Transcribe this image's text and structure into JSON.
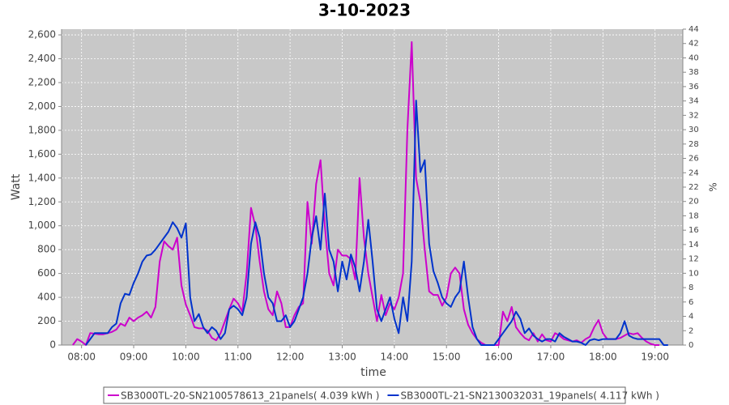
{
  "chart_data": {
    "type": "line",
    "title": "3-10-2023",
    "xlabel": "time",
    "ylabel": "Watt",
    "y2label": "%",
    "x": [
      "07:50",
      "07:55",
      "08:00",
      "08:05",
      "08:10",
      "08:15",
      "08:20",
      "08:25",
      "08:30",
      "08:35",
      "08:40",
      "08:45",
      "08:50",
      "08:55",
      "09:00",
      "09:05",
      "09:10",
      "09:15",
      "09:20",
      "09:25",
      "09:30",
      "09:35",
      "09:40",
      "09:45",
      "09:50",
      "09:55",
      "10:00",
      "10:05",
      "10:10",
      "10:15",
      "10:20",
      "10:25",
      "10:30",
      "10:35",
      "10:40",
      "10:45",
      "10:50",
      "10:55",
      "11:00",
      "11:05",
      "11:10",
      "11:15",
      "11:20",
      "11:25",
      "11:30",
      "11:35",
      "11:40",
      "11:45",
      "11:50",
      "11:55",
      "12:00",
      "12:05",
      "12:10",
      "12:15",
      "12:20",
      "12:25",
      "12:30",
      "12:35",
      "12:40",
      "12:45",
      "12:50",
      "12:55",
      "13:00",
      "13:05",
      "13:10",
      "13:15",
      "13:20",
      "13:25",
      "13:30",
      "13:35",
      "13:40",
      "13:45",
      "13:50",
      "13:55",
      "14:00",
      "14:05",
      "14:10",
      "14:15",
      "14:20",
      "14:25",
      "14:30",
      "14:35",
      "14:40",
      "14:45",
      "14:50",
      "14:55",
      "15:00",
      "15:05",
      "15:10",
      "15:15",
      "15:20",
      "15:25",
      "15:30",
      "15:35",
      "15:40",
      "15:45",
      "15:50",
      "15:55",
      "16:00",
      "16:05",
      "16:10",
      "16:15",
      "16:20",
      "16:25",
      "16:30",
      "16:35",
      "16:40",
      "16:45",
      "16:50",
      "16:55",
      "17:00",
      "17:05",
      "17:10",
      "17:15",
      "17:20",
      "17:25",
      "17:30",
      "17:35",
      "17:40",
      "17:45",
      "17:50",
      "17:55",
      "18:00",
      "18:05",
      "18:10",
      "18:15",
      "18:20",
      "18:25",
      "18:30",
      "18:35",
      "18:40",
      "18:45",
      "18:50",
      "18:55",
      "19:00",
      "19:05",
      "19:10",
      "19:15"
    ],
    "series": [
      {
        "name": "SB3000TL-20-SN2100578613_21panels( 4.039 kWh )",
        "color": "#cc00cc",
        "values": [
          0,
          50,
          30,
          0,
          100,
          95,
          90,
          90,
          100,
          110,
          130,
          180,
          160,
          230,
          200,
          230,
          250,
          280,
          230,
          320,
          700,
          870,
          830,
          800,
          900,
          500,
          340,
          250,
          150,
          140,
          140,
          120,
          60,
          40,
          100,
          200,
          300,
          390,
          350,
          280,
          600,
          1150,
          1000,
          700,
          450,
          300,
          250,
          450,
          350,
          150,
          150,
          250,
          320,
          350,
          1200,
          850,
          1350,
          1550,
          1000,
          600,
          500,
          800,
          750,
          750,
          720,
          550,
          1400,
          900,
          600,
          400,
          200,
          420,
          250,
          350,
          300,
          400,
          600,
          1800,
          2540,
          1400,
          1200,
          800,
          450,
          420,
          420,
          330,
          400,
          600,
          650,
          600,
          300,
          170,
          100,
          50,
          20,
          0,
          0,
          0,
          0,
          280,
          200,
          320,
          150,
          100,
          60,
          40,
          100,
          30,
          90,
          40,
          30,
          100,
          80,
          50,
          40,
          30,
          40,
          20,
          50,
          70,
          150,
          210,
          100,
          50,
          50,
          50,
          60,
          80,
          100,
          90,
          100,
          60,
          30,
          10,
          0,
          0,
          null,
          null
        ]
      },
      {
        "name": "SB3000TL-21-SN2130032031_19panels( 4.117 kWh )",
        "color": "#0033cc",
        "values": [
          null,
          null,
          null,
          0,
          50,
          100,
          100,
          100,
          100,
          150,
          180,
          350,
          430,
          420,
          520,
          600,
          700,
          750,
          760,
          800,
          850,
          900,
          950,
          1030,
          980,
          900,
          1020,
          400,
          200,
          260,
          150,
          100,
          150,
          120,
          50,
          100,
          300,
          330,
          300,
          250,
          400,
          850,
          1030,
          900,
          600,
          400,
          350,
          200,
          200,
          250,
          150,
          200,
          300,
          400,
          600,
          900,
          1080,
          800,
          1270,
          800,
          700,
          450,
          700,
          550,
          760,
          650,
          450,
          700,
          1050,
          700,
          300,
          200,
          300,
          400,
          220,
          100,
          400,
          200,
          700,
          2050,
          1450,
          1550,
          850,
          620,
          520,
          400,
          350,
          320,
          400,
          450,
          700,
          400,
          150,
          50,
          0,
          0,
          0,
          0,
          50,
          100,
          150,
          200,
          280,
          220,
          100,
          140,
          80,
          50,
          30,
          50,
          50,
          30,
          100,
          70,
          50,
          30,
          30,
          20,
          0,
          40,
          50,
          40,
          50,
          50,
          50,
          50,
          100,
          200,
          80,
          60,
          50,
          50,
          50,
          50,
          50,
          50,
          0,
          0
        ]
      }
    ],
    "xlim": [
      "07:37",
      "19:32"
    ],
    "xticks": [
      "08:00",
      "09:00",
      "10:00",
      "11:00",
      "12:00",
      "13:00",
      "14:00",
      "15:00",
      "16:00",
      "17:00",
      "18:00",
      "19:00"
    ],
    "ylim": [
      0,
      2648
    ],
    "yticks": [
      0,
      200,
      400,
      600,
      800,
      {
        "value": 1000,
        "label": "1,000"
      },
      {
        "value": 1200,
        "label": "1,200"
      },
      {
        "value": 1400,
        "label": "1,400"
      },
      {
        "value": 1600,
        "label": "1,600"
      },
      {
        "value": 1800,
        "label": "1,800"
      },
      {
        "value": 2000,
        "label": "2,000"
      },
      {
        "value": 2200,
        "label": "2,200"
      },
      {
        "value": 2400,
        "label": "2,400"
      },
      {
        "value": 2600,
        "label": "2,600"
      }
    ],
    "y2lim": [
      0,
      44
    ],
    "y2ticks": [
      0,
      2,
      4,
      6,
      8,
      10,
      12,
      14,
      16,
      18,
      20,
      22,
      24,
      26,
      28,
      30,
      32,
      34,
      36,
      38,
      40,
      42,
      44
    ],
    "grid": true,
    "legend": "bottom"
  }
}
